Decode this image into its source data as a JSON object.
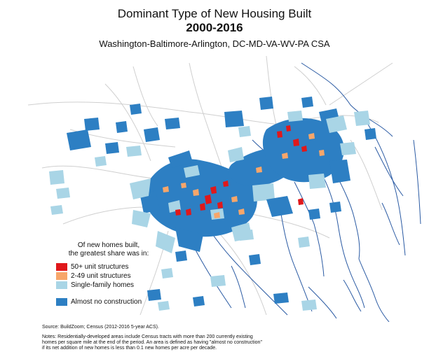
{
  "header": {
    "title": "Dominant Type of New Housing Built",
    "years": "2000-2016",
    "region": "Washington-Baltimore-Arlington, DC-MD-VA-WV-PA CSA"
  },
  "legend": {
    "heading_line1": "Of new homes built,",
    "heading_line2": "the greatest share was in:",
    "items": [
      {
        "label": "50+ unit structures",
        "color": "#e0181b"
      },
      {
        "label": "2-49 unit structures",
        "color": "#f7a66a"
      },
      {
        "label": "Single-family homes",
        "color": "#a9d5e6"
      },
      {
        "label": "Almost no construction",
        "color": "#2d7fc3"
      }
    ]
  },
  "colors": {
    "water_line": "#2a5aa3",
    "road_line": "#c9c9c9",
    "background": "#ffffff"
  },
  "footer": {
    "source": "Source: BuildZoom; Census (2012-2016 5-year ACS).",
    "notes_line1": "Notes: Residentially-developed areas include Census tracts with more than 200 currently existing",
    "notes_line2": "homes per square mile at the end of the period. An area is defined as having \"almost no construction\"",
    "notes_line3": "if its net addition of new homes is less than 0.1 new homes per acre per decade."
  }
}
